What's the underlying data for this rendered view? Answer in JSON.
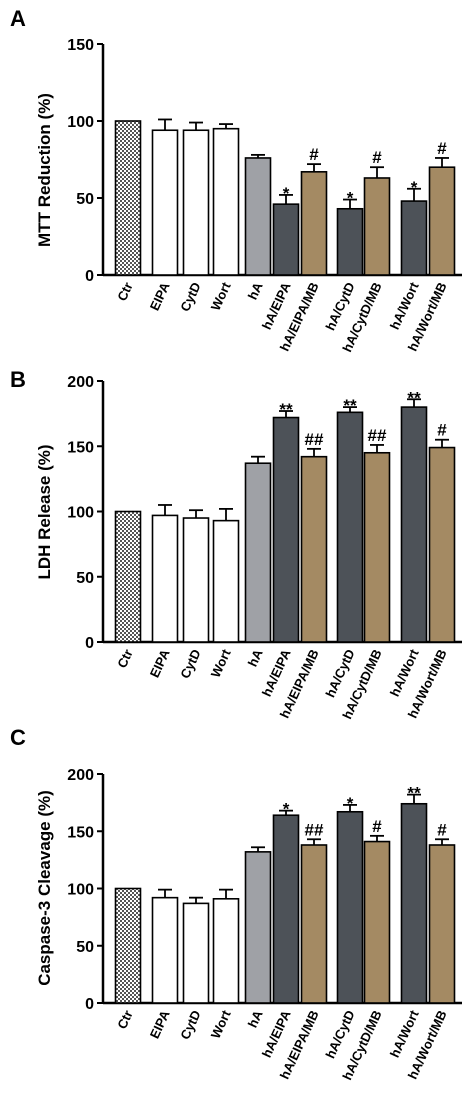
{
  "figure": {
    "colors": {
      "ctr_fill": "#7a7a7a",
      "white_fill": "#ffffff",
      "ha_fill": "#9fa1a6",
      "dark_fill": "#4d5258",
      "mb_fill": "#a48a63",
      "axis": "#000000"
    }
  },
  "chart_data": [
    {
      "type": "bar",
      "panel": "A",
      "ylabel": "MTT Reduction (%)",
      "ylim": [
        0,
        150
      ],
      "yticks": [
        0,
        50,
        100,
        150
      ],
      "categories": [
        "Ctr",
        "EIPA",
        "CytD",
        "Wort",
        "hA",
        "hA/EIPA",
        "hA/EIPA/MB",
        "hA/CytD",
        "hA/CytD/MB",
        "hA/Wort",
        "hA/Wort/MB"
      ],
      "values": [
        100,
        94,
        94,
        95,
        76,
        46,
        67,
        43,
        63,
        48,
        70
      ],
      "errors": [
        0,
        7,
        5,
        3,
        2,
        6,
        5,
        6,
        7,
        8,
        6
      ],
      "annotations": [
        "",
        "",
        "",
        "",
        "",
        "*",
        "#",
        "*",
        "#",
        "*",
        "#"
      ]
    },
    {
      "type": "bar",
      "panel": "B",
      "ylabel": "LDH Release (%)",
      "ylim": [
        0,
        200
      ],
      "yticks": [
        0,
        50,
        100,
        150,
        200
      ],
      "categories": [
        "Ctr",
        "EIPA",
        "CytD",
        "Wort",
        "hA",
        "hA/EIPA",
        "hA/EIPA/MB",
        "hA/CytD",
        "hA/CytD/MB",
        "hA/Wort",
        "hA/Wort/MB"
      ],
      "values": [
        100,
        97,
        95,
        93,
        137,
        172,
        142,
        176,
        145,
        180,
        149
      ],
      "errors": [
        0,
        8,
        6,
        9,
        5,
        5,
        6,
        4,
        6,
        6,
        6
      ],
      "annotations": [
        "",
        "",
        "",
        "",
        "",
        "**",
        "##",
        "**",
        "##",
        "**",
        "#"
      ]
    },
    {
      "type": "bar",
      "panel": "C",
      "ylabel": "Caspase-3 Cleavage (%)",
      "ylim": [
        0,
        200
      ],
      "yticks": [
        0,
        50,
        100,
        150,
        200
      ],
      "categories": [
        "Ctr",
        "EIPA",
        "CytD",
        "Wort",
        "hA",
        "hA/EIPA",
        "hA/EIPA/MB",
        "hA/CytD",
        "hA/CytD/MB",
        "hA/Wort",
        "hA/Wort/MB"
      ],
      "values": [
        100,
        92,
        87,
        91,
        132,
        164,
        138,
        167,
        141,
        174,
        138
      ],
      "errors": [
        0,
        7,
        5,
        8,
        4,
        4,
        5,
        6,
        5,
        8,
        5
      ],
      "annotations": [
        "",
        "",
        "",
        "",
        "",
        "*",
        "##",
        "*",
        "#",
        "**",
        "#"
      ]
    }
  ]
}
